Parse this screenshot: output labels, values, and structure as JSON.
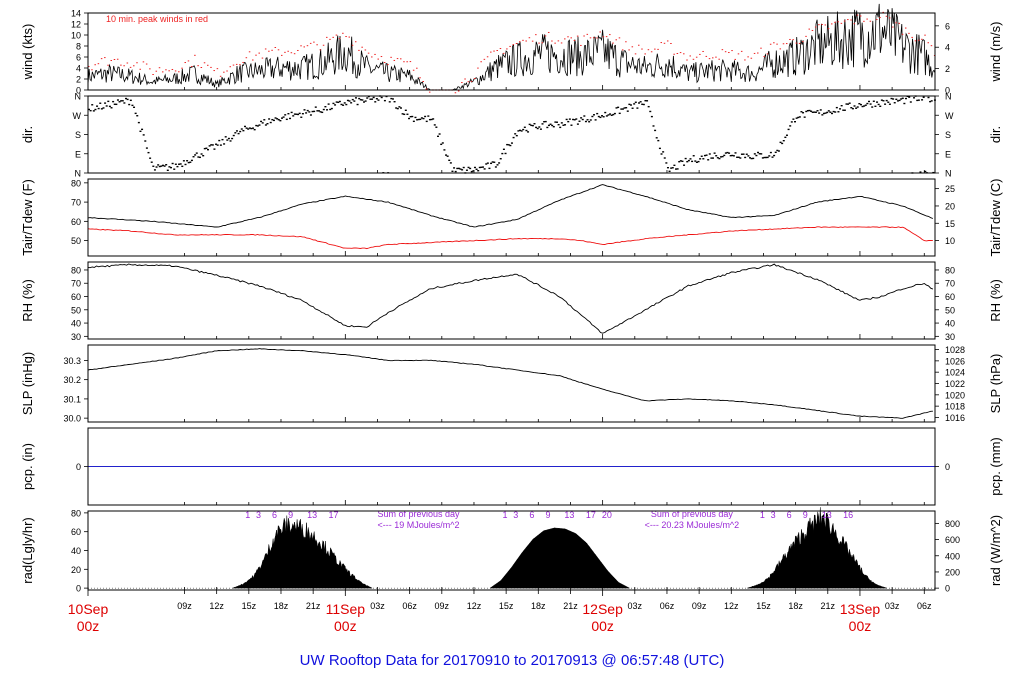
{
  "title": "UW Rooftop Data for 20170910  to  20170913 @ 06:57:48  (UTC)",
  "colors": {
    "title": "#1111dd",
    "date": "#dd0000",
    "peak": "#ee2222",
    "tdew": "#ee1111",
    "pcp": "#2222cc",
    "annot": "#9a2ad6",
    "ink": "#000000"
  },
  "x_axis": {
    "range_hours": [
      0,
      79
    ],
    "hour_ticks": [
      {
        "h": 9,
        "label": "09z"
      },
      {
        "h": 12,
        "label": "12z"
      },
      {
        "h": 15,
        "label": "15z"
      },
      {
        "h": 18,
        "label": "18z"
      },
      {
        "h": 21,
        "label": "21z"
      },
      {
        "h": 27,
        "label": "03z"
      },
      {
        "h": 30,
        "label": "06z"
      },
      {
        "h": 33,
        "label": "09z"
      },
      {
        "h": 36,
        "label": "12z"
      },
      {
        "h": 39,
        "label": "15z"
      },
      {
        "h": 42,
        "label": "18z"
      },
      {
        "h": 45,
        "label": "21z"
      },
      {
        "h": 51,
        "label": "03z"
      },
      {
        "h": 54,
        "label": "06z"
      },
      {
        "h": 57,
        "label": "09z"
      },
      {
        "h": 60,
        "label": "12z"
      },
      {
        "h": 63,
        "label": "15z"
      },
      {
        "h": 66,
        "label": "18z"
      },
      {
        "h": 69,
        "label": "21z"
      },
      {
        "h": 75,
        "label": "03z"
      },
      {
        "h": 78,
        "label": "06z"
      }
    ],
    "day_ticks": [
      {
        "h": 0,
        "day": "10Sep",
        "hour": "00z"
      },
      {
        "h": 24,
        "day": "11Sep",
        "hour": "00z"
      },
      {
        "h": 48,
        "day": "12Sep",
        "hour": "00z"
      },
      {
        "h": 72,
        "day": "13Sep",
        "hour": "00z"
      }
    ]
  },
  "chart_data": [
    {
      "type": "line",
      "id": "wind",
      "ylabel_left": "wind (kts)",
      "ylabel_right": "wind (m/s)",
      "left_ticks": [
        0,
        2,
        4,
        6,
        8,
        10,
        12,
        14
      ],
      "right_ticks": [
        0,
        2,
        4,
        6
      ],
      "ylim": [
        0,
        14
      ],
      "right_ylim": [
        0,
        7.2
      ],
      "annotation": "10 min. peak winds in red",
      "x_hours": [
        0,
        2,
        4,
        6,
        8,
        10,
        12,
        14,
        16,
        18,
        20,
        22,
        24,
        26,
        28,
        30,
        32,
        34,
        36,
        38,
        40,
        42,
        44,
        46,
        48,
        50,
        52,
        54,
        56,
        58,
        60,
        62,
        64,
        66,
        68,
        70,
        72,
        74,
        76,
        78,
        79
      ],
      "speed_kts": [
        2.5,
        3,
        2.5,
        1.5,
        2,
        3,
        1,
        3,
        3.5,
        4,
        4,
        5,
        7,
        4,
        3,
        2.5,
        0,
        0,
        1.5,
        4,
        5.5,
        6.5,
        6.5,
        6,
        7,
        5,
        4,
        5,
        3,
        3.5,
        3.5,
        3,
        5,
        6,
        8,
        9,
        10,
        11,
        8,
        6,
        4
      ],
      "peak_kts": [
        4.5,
        5.5,
        5,
        3.5,
        4,
        5.5,
        3,
        5.5,
        6.5,
        7,
        7.5,
        8.5,
        10,
        7,
        5.5,
        4.5,
        0,
        0,
        3,
        7,
        8.5,
        9.5,
        9.5,
        9,
        10.5,
        8,
        7,
        8,
        6,
        6.5,
        6.5,
        6,
        8,
        9,
        11,
        12,
        13,
        13.5,
        11,
        9,
        7
      ]
    },
    {
      "type": "scatter",
      "id": "direction",
      "ylabel_left": "dir.",
      "ylabel_right": "dir.",
      "ticks": [
        "N",
        "E",
        "S",
        "W",
        "N"
      ],
      "ylim": [
        0,
        360
      ],
      "x_hours": [
        0,
        2,
        4,
        6,
        8,
        10,
        12,
        14,
        16,
        18,
        20,
        22,
        24,
        26,
        28,
        30,
        32,
        34,
        36,
        38,
        40,
        42,
        44,
        46,
        48,
        50,
        52,
        54,
        56,
        58,
        60,
        62,
        64,
        66,
        68,
        70,
        72,
        74,
        76,
        78,
        79
      ],
      "deg": [
        300,
        320,
        340,
        20,
        30,
        80,
        130,
        190,
        230,
        260,
        280,
        300,
        330,
        340,
        350,
        260,
        250,
        10,
        15,
        40,
        200,
        220,
        230,
        250,
        270,
        300,
        330,
        10,
        60,
        80,
        90,
        80,
        85,
        270,
        280,
        300,
        320,
        330,
        340,
        350,
        345
      ]
    },
    {
      "type": "line",
      "id": "temperature",
      "ylabel_left": "Tair/Tdew (F)",
      "ylabel_right": "Tair/Tdew (C)",
      "left_ticks": [
        50,
        60,
        70,
        80
      ],
      "right_ticks": [
        10,
        15,
        20,
        25
      ],
      "ylim": [
        42,
        82
      ],
      "right_ylim": [
        5.56,
        27.78
      ],
      "series": [
        {
          "x_hours": [
            0,
            6,
            12,
            16,
            20,
            24,
            28,
            32,
            36,
            40,
            44,
            48,
            52,
            56,
            60,
            64,
            68,
            72,
            76,
            79
          ],
          "values": [
            62,
            60,
            57,
            62,
            69,
            73,
            70,
            63,
            57,
            61,
            71,
            79,
            73,
            66,
            62,
            63,
            70,
            73,
            68,
            61
          ]
        },
        {
          "x_hours": [
            0,
            4,
            8,
            12,
            16,
            20,
            22,
            24,
            26,
            28,
            32,
            36,
            40,
            44,
            46,
            48,
            52,
            56,
            60,
            64,
            68,
            72,
            76,
            78,
            79
          ],
          "values": [
            56,
            55,
            53,
            53,
            53,
            52,
            49,
            46,
            46,
            48,
            49,
            50,
            51,
            51,
            50,
            48,
            51,
            53,
            55,
            56,
            57,
            57,
            57,
            50,
            50
          ]
        }
      ]
    },
    {
      "type": "line",
      "id": "rh",
      "ylabel_left": "RH (%)",
      "ylabel_right": "RH (%)",
      "ticks": [
        30,
        40,
        50,
        60,
        70,
        80
      ],
      "ylim": [
        28,
        86
      ],
      "x_hours": [
        0,
        4,
        8,
        12,
        16,
        20,
        24,
        26,
        28,
        32,
        36,
        40,
        44,
        48,
        52,
        56,
        60,
        64,
        68,
        72,
        74,
        76,
        78,
        79
      ],
      "values": [
        82,
        84,
        83,
        76,
        68,
        57,
        38,
        37,
        48,
        66,
        72,
        77,
        60,
        32,
        50,
        68,
        78,
        84,
        73,
        57,
        60,
        66,
        70,
        64
      ]
    },
    {
      "type": "line",
      "id": "pressure",
      "ylabel_left": "SLP (inHg)",
      "ylabel_right": "SLP (hPa)",
      "left_ticks": [
        30.0,
        30.1,
        30.2,
        30.3
      ],
      "right_ticks": [
        1016,
        1018,
        1020,
        1022,
        1024,
        1026,
        1028
      ],
      "ylim": [
        29.98,
        30.38
      ],
      "right_ylim": [
        1015.2,
        1028.8
      ],
      "x_hours": [
        0,
        4,
        8,
        12,
        16,
        20,
        24,
        28,
        32,
        36,
        40,
        44,
        48,
        52,
        56,
        60,
        64,
        68,
        72,
        76,
        79
      ],
      "values": [
        30.25,
        30.28,
        30.31,
        30.35,
        30.36,
        30.35,
        30.33,
        30.3,
        30.3,
        30.28,
        30.25,
        30.22,
        30.15,
        30.09,
        30.1,
        30.09,
        30.07,
        30.04,
        30.01,
        30.0,
        30.04
      ]
    },
    {
      "type": "line",
      "id": "precip",
      "ylabel_left": "pcp. (in)",
      "ylabel_right": "pcp. (mm)",
      "left_ticks": [
        0
      ],
      "right_ticks": [
        0
      ],
      "ylim": [
        -0.5,
        0.5
      ],
      "x_hours": [
        0,
        79
      ],
      "values": [
        0,
        0
      ]
    },
    {
      "type": "area",
      "id": "radiation",
      "ylabel_left": "rad(Lgly/hr)",
      "ylabel_right": "rad (W/m^2)",
      "left_ticks": [
        0,
        20,
        40,
        60,
        80
      ],
      "right_ticks": [
        0,
        200,
        400,
        600,
        800
      ],
      "ylim": [
        -2,
        82
      ],
      "right_ylim": [
        -23,
        953
      ],
      "days": [
        {
          "x_hours": [
            13.5,
            14.5,
            15.5,
            16.5,
            17.5,
            18.5,
            19.5,
            20.5,
            21.5,
            22.5,
            23.5,
            24.5,
            25.5,
            26.5
          ],
          "values": [
            0,
            5,
            14,
            34,
            62,
            72,
            71,
            65,
            55,
            42,
            28,
            16,
            6,
            0
          ],
          "hour_labels": [
            "1",
            "3",
            "6",
            "9",
            "13",
            "17"
          ],
          "label_hours": [
            14.9,
            15.9,
            17.4,
            18.9,
            20.9,
            22.9
          ],
          "sum_lines": [
            "Sum of previous day",
            "<--- 19 MJoules/m^2"
          ]
        },
        {
          "x_hours": [
            37.5,
            38.5,
            39.5,
            40.5,
            41.5,
            42.5,
            43.5,
            44.5,
            45.5,
            46.5,
            47.5,
            48.5,
            49.5,
            50.5
          ],
          "values": [
            0,
            8,
            22,
            38,
            52,
            61,
            64,
            63,
            58,
            48,
            33,
            18,
            6,
            0
          ],
          "hour_labels": [
            "1",
            "3",
            "6",
            "9",
            "13",
            "17",
            "20"
          ],
          "label_hours": [
            38.9,
            39.9,
            41.4,
            42.9,
            44.9,
            46.9,
            48.4
          ],
          "sum_lines": [
            "Sum of previous day",
            "<--- 20.23 MJoules/m^2"
          ]
        },
        {
          "x_hours": [
            61.5,
            62.5,
            63.5,
            64.5,
            65.5,
            66.5,
            67.5,
            68.5,
            69.5,
            70.5,
            71.5,
            72.5,
            73.5,
            74.5
          ],
          "values": [
            0,
            4,
            12,
            28,
            45,
            60,
            72,
            82,
            68,
            50,
            32,
            14,
            4,
            0
          ],
          "hour_labels": [
            "1",
            "3",
            "6",
            "9",
            "13",
            "16"
          ],
          "label_hours": [
            62.9,
            63.9,
            65.4,
            66.9,
            68.9,
            70.9
          ]
        }
      ]
    }
  ]
}
